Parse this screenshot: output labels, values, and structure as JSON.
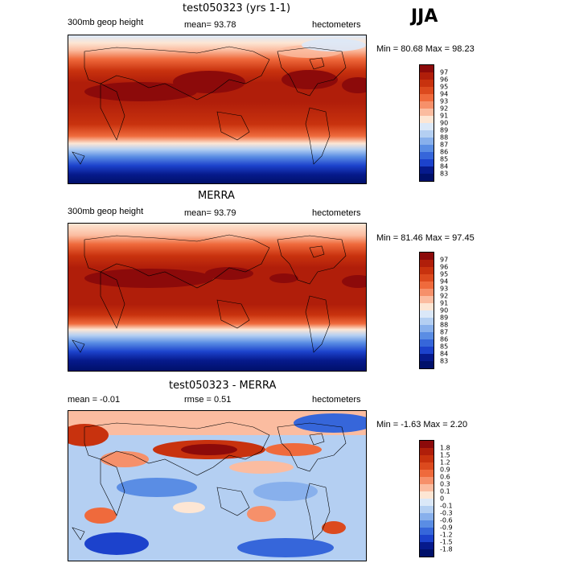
{
  "season": "JJA",
  "panels": [
    {
      "title": "test050323 (yrs 1-1)",
      "left_label": "300mb geop height",
      "mid_label": "mean=  93.78",
      "right_label": "hectometers",
      "minmax": "Min =  80.68 Max =  98.23",
      "levels": [
        "97",
        "96",
        "95",
        "94",
        "93",
        "92",
        "91",
        "90",
        "89",
        "88",
        "87",
        "86",
        "85",
        "84",
        "83"
      ],
      "colors": [
        "#8c0a0a",
        "#b01e0a",
        "#c8320e",
        "#dc4a1e",
        "#ef6a3c",
        "#f6906a",
        "#fbbca0",
        "#fde6d4",
        "#dbe8f8",
        "#b4cff2",
        "#88b0ec",
        "#5a8de4",
        "#3666da",
        "#1c42cc",
        "#061a8c",
        "#00106a"
      ]
    },
    {
      "title": "MERRA",
      "left_label": "300mb geop height",
      "mid_label": "mean=  93.79",
      "right_label": "hectometers",
      "minmax": "Min =  81.46 Max =  97.45",
      "levels": [
        "97",
        "96",
        "95",
        "94",
        "93",
        "92",
        "91",
        "90",
        "89",
        "88",
        "87",
        "86",
        "85",
        "84",
        "83"
      ],
      "colors": [
        "#8c0a0a",
        "#b01e0a",
        "#c8320e",
        "#dc4a1e",
        "#ef6a3c",
        "#f6906a",
        "#fbbca0",
        "#fde6d4",
        "#dbe8f8",
        "#b4cff2",
        "#88b0ec",
        "#5a8de4",
        "#3666da",
        "#1c42cc",
        "#061a8c",
        "#00106a"
      ]
    },
    {
      "title": "test050323 - MERRA",
      "left_label": "mean =   -0.01",
      "mid_label": "rmse =    0.51",
      "right_label": "hectometers",
      "minmax": "Min =  -1.63 Max =   2.20",
      "levels": [
        "1.8",
        "1.5",
        "1.2",
        "0.9",
        "0.6",
        "0.3",
        "0.1",
        "0",
        "-0.1",
        "-0.3",
        "-0.6",
        "-0.9",
        "-1.2",
        "-1.5",
        "-1.8"
      ],
      "colors": [
        "#8c0a0a",
        "#b01e0a",
        "#c8320e",
        "#dc4a1e",
        "#ef6a3c",
        "#f6906a",
        "#fbbca0",
        "#fde6d4",
        "#dbe8f8",
        "#b4cff2",
        "#88b0ec",
        "#5a8de4",
        "#3666da",
        "#1c42cc",
        "#061a8c",
        "#00106a"
      ]
    }
  ]
}
